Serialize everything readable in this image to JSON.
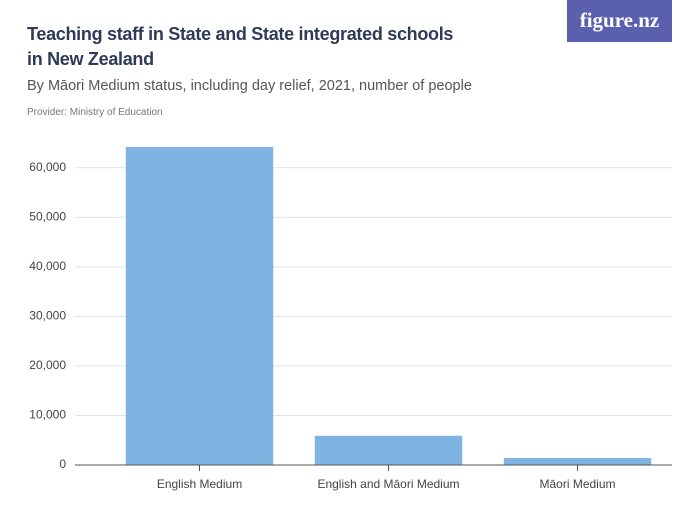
{
  "chart_data": {
    "type": "bar",
    "title": "Teaching staff in State and State integrated schools in New Zealand",
    "subtitle": "By Māori Medium status, including day relief, 2021, number of people",
    "provider": "Provider: Ministry of Education",
    "logo": "figure.nz",
    "categories": [
      "English Medium",
      "English and Māori Medium",
      "Māori Medium"
    ],
    "values": [
      64200,
      5900,
      1400
    ],
    "color": "#7fb3e2",
    "ylim": [
      0,
      65000
    ],
    "yticks": [
      0,
      {
        "value": 10000,
        "label": "10,000"
      },
      {
        "value": 20000,
        "label": "20,000"
      },
      {
        "value": 30000,
        "label": "30,000"
      },
      {
        "value": 40000,
        "label": "40,000"
      },
      {
        "value": 50000,
        "label": "50,000"
      },
      {
        "value": 60000,
        "label": "60,000"
      }
    ],
    "grid": true
  }
}
